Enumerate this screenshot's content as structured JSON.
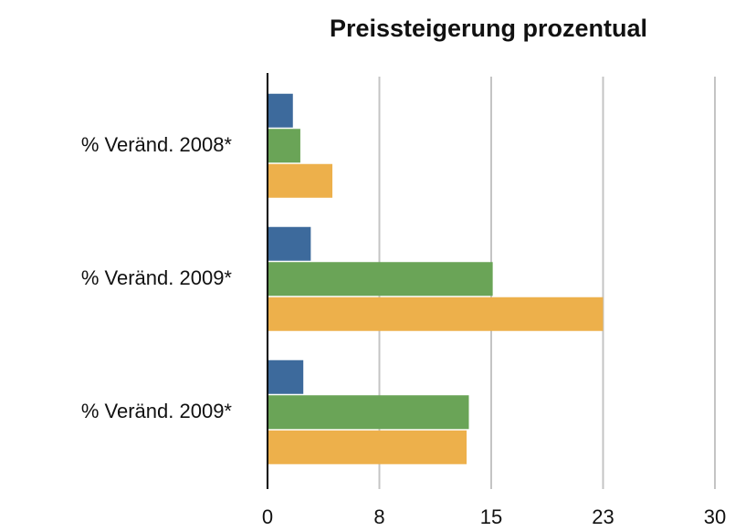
{
  "chart_data": {
    "type": "bar",
    "orientation": "horizontal",
    "title": "Preissteigerung prozentual",
    "categories": [
      "% Veränd. 2008*",
      "% Veränd. 2009*",
      "% Veränd. 2009*"
    ],
    "series": [
      {
        "color": "#3d6a9c",
        "values": [
          1.7,
          2.9,
          2.4
        ]
      },
      {
        "color": "#6aa457",
        "values": [
          2.2,
          15.1,
          13.5
        ]
      },
      {
        "color": "#edb04b",
        "values": [
          4.35,
          22.5,
          13.35
        ]
      }
    ],
    "xlim": [
      0,
      30
    ],
    "xticks": [
      0,
      {
        "value": 7.5,
        "label": "8"
      },
      15,
      {
        "value": 22.5,
        "label": "23"
      },
      30
    ],
    "grid": true
  }
}
